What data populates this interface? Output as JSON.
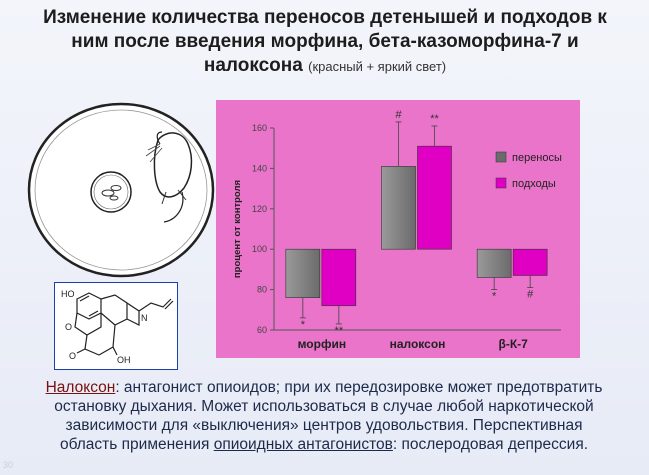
{
  "slide": {
    "title": "Изменение количества переносов детенышей и подходов к ним после введения морфина, бета-казоморфина-7 и налоксона",
    "subtitle": "(красный + яркий свет)",
    "page_number": "30"
  },
  "illustration": {
    "depicts": "mouse-in-arena",
    "molecule_depicts": "naloxone-structure"
  },
  "molecule_labels": {
    "ho_top": "HO",
    "o_left": "O",
    "o_bottom": "O",
    "oh": "OH",
    "n": "N"
  },
  "chart_data": {
    "type": "bar",
    "categories": [
      "морфин",
      "налоксон",
      "β-К-7"
    ],
    "series": [
      {
        "name": "переносы",
        "values": [
          76,
          141,
          86
        ],
        "errors": [
          10,
          22,
          6
        ],
        "annotations": [
          "*",
          "#",
          "*"
        ]
      },
      {
        "name": "подходы",
        "values": [
          72,
          151,
          87
        ],
        "errors": [
          9,
          10,
          6
        ],
        "annotations": [
          "**",
          "**",
          "#"
        ]
      }
    ],
    "baseline": 100,
    "ylabel": "процент от контроля",
    "xlabel": "",
    "ylim": [
      60,
      160
    ],
    "yticks": [
      60,
      80,
      100,
      120,
      140,
      160
    ],
    "grid": false,
    "legend_position": "right",
    "colors": {
      "plot_bg": "#e974c9",
      "series1": "#6b6b6b",
      "series2": "#e000c4",
      "axis": "#555555"
    }
  },
  "footer": {
    "term": "Налоксон",
    "line1_rest": ": антагонист опиоидов; при их передозировке может предотвратить",
    "line2": "остановку дыхания. Может использоваться в случае любой наркотической",
    "line3": "зависимости для «выключения» центров удовольствия. Перспективная",
    "line4_pre": "область применения ",
    "term2": "опиоидных антагонистов",
    "line4_post": ": послеродовая депрессия."
  }
}
